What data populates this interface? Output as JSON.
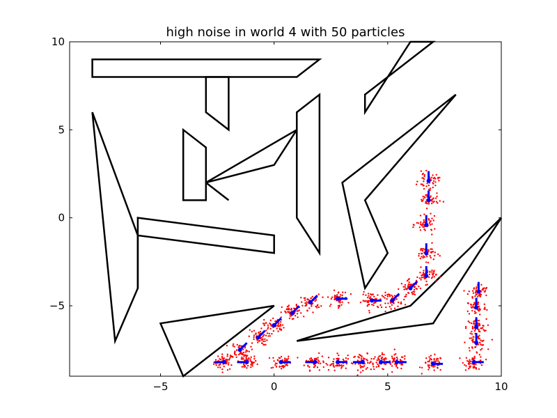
{
  "chart_data": {
    "type": "scatter",
    "title": "high noise in world 4 with 50 particles",
    "xlabel": "",
    "ylabel": "",
    "xlim": [
      -9,
      10
    ],
    "ylim": [
      -9,
      10
    ],
    "xticks": [
      -5,
      0,
      5,
      10
    ],
    "yticks": [
      -5,
      0,
      5,
      10
    ],
    "xtick_labels": [
      "−5",
      "0",
      "5",
      "10"
    ],
    "ytick_labels": [
      "−5",
      "0",
      "5",
      "10"
    ],
    "grid": false,
    "legend": "none",
    "colors": {
      "obstacles": "#000000",
      "particles": "#ff0000",
      "estimate": "#0000ff"
    },
    "obstacles": [
      [
        [
          -8,
          9
        ],
        [
          2,
          9
        ],
        [
          1,
          8
        ],
        [
          -8,
          8
        ]
      ],
      [
        [
          -3,
          8
        ],
        [
          -2,
          8
        ],
        [
          -2,
          5
        ],
        [
          -3,
          6
        ]
      ],
      [
        [
          -4,
          5
        ],
        [
          -3,
          4
        ],
        [
          -3,
          1
        ],
        [
          -4,
          1
        ]
      ],
      [
        [
          -3,
          2
        ],
        [
          1,
          5
        ],
        [
          0,
          3
        ]
      ],
      [
        [
          -2,
          1
        ],
        [
          -3,
          2
        ]
      ],
      [
        [
          1,
          6
        ],
        [
          2,
          7
        ],
        [
          2,
          -2
        ],
        [
          1,
          0
        ]
      ],
      [
        [
          4,
          7
        ],
        [
          7,
          10
        ],
        [
          6,
          10
        ],
        [
          4,
          6
        ]
      ],
      [
        [
          3,
          2
        ],
        [
          8,
          7
        ],
        [
          4,
          1
        ],
        [
          5,
          -2
        ],
        [
          4,
          -4
        ]
      ],
      [
        [
          -8,
          6
        ],
        [
          -6,
          -1
        ],
        [
          -6,
          -4
        ],
        [
          -7,
          -7
        ]
      ],
      [
        [
          -6,
          0
        ],
        [
          0,
          -1
        ],
        [
          0,
          -2
        ],
        [
          -6,
          -1
        ],
        [
          -6,
          -4
        ]
      ],
      [
        [
          -5,
          -6
        ],
        [
          0,
          -5
        ],
        [
          -4,
          -9
        ]
      ],
      [
        [
          1,
          -7
        ],
        [
          6,
          -5
        ],
        [
          10,
          0
        ],
        [
          7,
          -6
        ]
      ]
    ],
    "estimates": [
      {
        "x": -2.2,
        "y": -8.2,
        "heading": 180
      },
      {
        "x": -1.2,
        "y": -8.2,
        "heading": 180
      },
      {
        "x": 0.3,
        "y": -8.2,
        "heading": 0
      },
      {
        "x": 1.8,
        "y": -8.2,
        "heading": 180
      },
      {
        "x": 2.8,
        "y": -8.2,
        "heading": 0
      },
      {
        "x": 3.9,
        "y": -8.2,
        "heading": 180
      },
      {
        "x": 4.7,
        "y": -8.2,
        "heading": 0
      },
      {
        "x": 5.4,
        "y": -8.2,
        "heading": 0
      },
      {
        "x": 7.0,
        "y": -8.3,
        "heading": 0
      },
      {
        "x": 8.8,
        "y": -8.2,
        "heading": 0
      },
      {
        "x": 8.9,
        "y": -7.1,
        "heading": 90
      },
      {
        "x": 8.9,
        "y": -6.2,
        "heading": 90
      },
      {
        "x": 8.9,
        "y": -5.1,
        "heading": 90
      },
      {
        "x": 9.0,
        "y": -4.2,
        "heading": 90
      },
      {
        "x": -1.5,
        "y": -7.5,
        "heading": 45
      },
      {
        "x": -0.7,
        "y": -6.8,
        "heading": 45
      },
      {
        "x": 0.0,
        "y": -6.1,
        "heading": 45
      },
      {
        "x": 0.8,
        "y": -5.4,
        "heading": 45
      },
      {
        "x": 1.6,
        "y": -4.8,
        "heading": 45
      },
      {
        "x": 2.8,
        "y": -4.6,
        "heading": 0
      },
      {
        "x": 4.3,
        "y": -4.7,
        "heading": 0
      },
      {
        "x": 5.2,
        "y": -4.7,
        "heading": 45
      },
      {
        "x": 6.0,
        "y": -4.0,
        "heading": 45
      },
      {
        "x": 6.7,
        "y": -3.3,
        "heading": 90
      },
      {
        "x": 6.7,
        "y": -2.0,
        "heading": 90
      },
      {
        "x": 6.7,
        "y": -0.4,
        "heading": 90
      },
      {
        "x": 6.8,
        "y": 1.0,
        "heading": 90
      },
      {
        "x": 6.8,
        "y": 2.1,
        "heading": 90
      }
    ],
    "particles_per_estimate": 50,
    "particle_spread": 0.22
  }
}
